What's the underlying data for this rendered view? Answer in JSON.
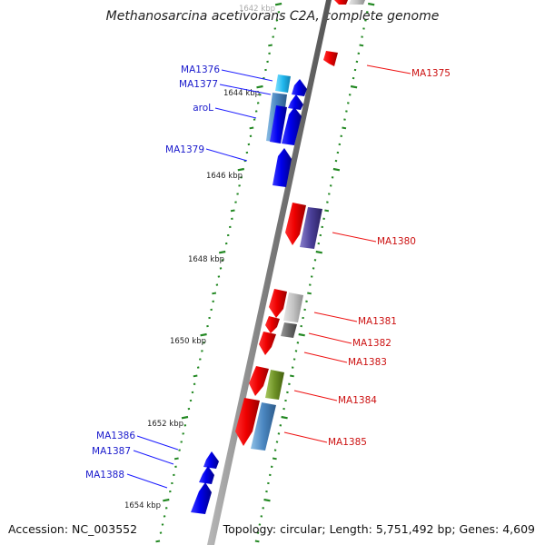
{
  "title": "Methanosarcina acetivorans C2A, complete genome",
  "accession": "Accession: NC_003552",
  "topology": "Topology: circular; Length: 5,751,492 bp; Genes: 4,609",
  "colors": {
    "forward_gene": "#0000ee",
    "reverse_gene": "#ee0000",
    "forward_label": "#0000cc",
    "reverse_label": "#cc0000",
    "backbone": "#888888",
    "tick": "#228822"
  },
  "tick_labels": [
    {
      "id": "t1642",
      "text": "1642 kbp"
    },
    {
      "id": "t1644",
      "text": "1644 kbp"
    },
    {
      "id": "t1646",
      "text": "1646 kbp"
    },
    {
      "id": "t1648",
      "text": "1648 kbp"
    },
    {
      "id": "t1650",
      "text": "1650 kbp"
    },
    {
      "id": "t1652",
      "text": "1652 kbp"
    },
    {
      "id": "t1654",
      "text": "1654 kbp"
    }
  ],
  "forward_labels": [
    {
      "id": "MA1376",
      "text": "MA1376"
    },
    {
      "id": "MA1377",
      "text": "MA1377"
    },
    {
      "id": "aroL",
      "text": "aroL"
    },
    {
      "id": "MA1379",
      "text": "MA1379"
    },
    {
      "id": "MA1386",
      "text": "MA1386"
    },
    {
      "id": "MA1387",
      "text": "MA1387"
    },
    {
      "id": "MA1388",
      "text": "MA1388"
    }
  ],
  "reverse_labels": [
    {
      "id": "MA1375",
      "text": "MA1375"
    },
    {
      "id": "MA1380",
      "text": "MA1380"
    },
    {
      "id": "MA1381",
      "text": "MA1381"
    },
    {
      "id": "MA1382",
      "text": "MA1382"
    },
    {
      "id": "MA1383",
      "text": "MA1383"
    },
    {
      "id": "MA1384",
      "text": "MA1384"
    },
    {
      "id": "MA1385",
      "text": "MA1385"
    }
  ]
}
